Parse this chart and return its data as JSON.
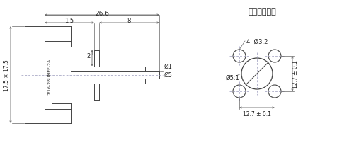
{
  "bg_color": "#ffffff",
  "line_color": "#444444",
  "dim_line_color": "#666666",
  "center_line_color": "#9999bb",
  "text_color": "#222222",
  "title_right": "安装开孔尺寸",
  "label_26_6": "26.6",
  "label_1_5": "1.5",
  "label_8": "8",
  "label_2": "2",
  "label_d1": "Ø1",
  "label_d5": "Ø5",
  "label_17_5": "17.5 × 17.5",
  "label_thread": "7/16-28UNEF-2A",
  "label_small_hole": "4  Ø3.2",
  "label_center_hole": "Ø5.1",
  "label_dim_v": "12.7 ± 0.1",
  "label_dim_h": "12.7 ± 0.1"
}
